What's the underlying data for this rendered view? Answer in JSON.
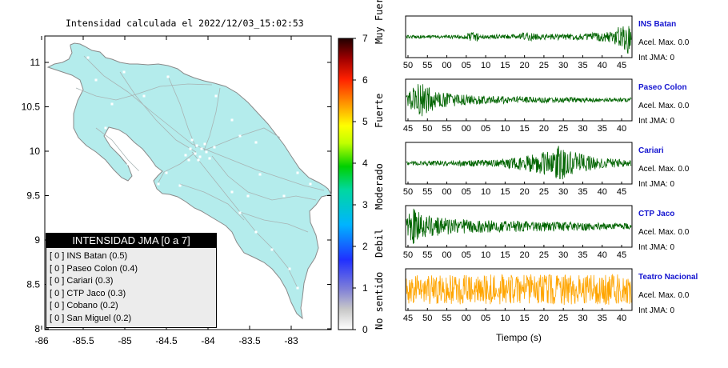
{
  "map": {
    "title": "Intensidad calculada el 2022/12/03_15:02:53",
    "lat_ticks": [
      "11",
      "10.5",
      "10",
      "9.5",
      "9",
      "8.5",
      "8"
    ],
    "lon_ticks": [
      "-86",
      "-85.5",
      "-85",
      "-84.5",
      "-84",
      "-83.5",
      "-83"
    ],
    "land_color": "#b4ecec",
    "legend": {
      "title": "INTENSIDAD JMA [0 a 7]",
      "items": [
        "[ 0 ]  INS Batan (0.5)",
        "[ 0 ]  Paseo Colon (0.4)",
        "[ 0 ]  Cariari (0.3)",
        "[ 0 ]  CTP Jaco (0.3)",
        "[ 0 ]  Cobano (0.2)",
        "[ 0 ]  San Miguel (0.2)"
      ]
    }
  },
  "colorbar": {
    "ticks": [
      "7",
      "6",
      "5",
      "4",
      "3",
      "2",
      "1",
      "0"
    ],
    "levels": [
      "Muy Fuerte",
      "Fuerte",
      "Moderado",
      "Debil",
      "No sentido"
    ]
  },
  "chart_data": [
    {
      "type": "line",
      "name": "INS Batan",
      "accel_label": "Acel. Max. 0.0",
      "int_label": "Int JMA: 0",
      "x_ticks": [
        "50",
        "55",
        "00",
        "05",
        "10",
        "15",
        "20",
        "25",
        "30",
        "35",
        "40",
        "45"
      ],
      "color": "#006400",
      "envelope": [
        [
          0,
          0.08
        ],
        [
          0.25,
          0.1
        ],
        [
          0.3,
          0.3
        ],
        [
          0.33,
          0.12
        ],
        [
          0.5,
          0.12
        ],
        [
          0.52,
          0.25
        ],
        [
          0.6,
          0.15
        ],
        [
          0.8,
          0.18
        ],
        [
          0.9,
          0.28
        ],
        [
          0.96,
          0.6
        ],
        [
          0.985,
          1.0
        ],
        [
          1.0,
          0.4
        ]
      ]
    },
    {
      "type": "line",
      "name": "Paseo Colon",
      "accel_label": "Acel. Max. 0.0",
      "int_label": "Int JMA: 0",
      "x_ticks": [
        "45",
        "50",
        "55",
        "00",
        "05",
        "10",
        "15",
        "20",
        "25",
        "30",
        "35",
        "40"
      ],
      "color": "#006400",
      "envelope": [
        [
          0,
          0.2
        ],
        [
          0.02,
          0.55
        ],
        [
          0.06,
          0.95
        ],
        [
          0.1,
          0.7
        ],
        [
          0.15,
          0.4
        ],
        [
          0.3,
          0.25
        ],
        [
          0.6,
          0.15
        ],
        [
          1.0,
          0.12
        ]
      ]
    },
    {
      "type": "line",
      "name": "Cariari",
      "accel_label": "Acel. Max. 0.0",
      "int_label": "Int JMA: 0",
      "x_ticks": [
        "50",
        "55",
        "00",
        "05",
        "10",
        "15",
        "20",
        "25",
        "30",
        "35",
        "40",
        "45"
      ],
      "color": "#006400",
      "envelope": [
        [
          0,
          0.1
        ],
        [
          0.2,
          0.15
        ],
        [
          0.4,
          0.2
        ],
        [
          0.5,
          0.35
        ],
        [
          0.6,
          0.55
        ],
        [
          0.68,
          0.95
        ],
        [
          0.74,
          0.6
        ],
        [
          0.85,
          0.3
        ],
        [
          1.0,
          0.15
        ]
      ]
    },
    {
      "type": "line",
      "name": "CTP Jaco",
      "accel_label": "Acel. Max. 0.0",
      "int_label": "Int JMA: 0",
      "x_ticks": [
        "50",
        "55",
        "00",
        "05",
        "10",
        "15",
        "20",
        "25",
        "30",
        "35",
        "40",
        "45"
      ],
      "color": "#006400",
      "envelope": [
        [
          0,
          0.5
        ],
        [
          0.03,
          0.95
        ],
        [
          0.08,
          0.6
        ],
        [
          0.2,
          0.4
        ],
        [
          0.4,
          0.3
        ],
        [
          0.7,
          0.25
        ],
        [
          1.0,
          0.15
        ]
      ]
    },
    {
      "type": "line",
      "name": "Teatro Nacional",
      "accel_label": "Acel. Max. 0.0",
      "int_label": "Int JMA: 0",
      "x_ticks": [
        "45",
        "50",
        "55",
        "00",
        "05",
        "10",
        "15",
        "20",
        "25",
        "30",
        "35",
        "40"
      ],
      "color": "#ffa500",
      "envelope": [
        [
          0,
          0.75
        ],
        [
          0.5,
          0.8
        ],
        [
          1.0,
          0.8
        ]
      ]
    }
  ],
  "xlabel": "Tiempo (s)"
}
